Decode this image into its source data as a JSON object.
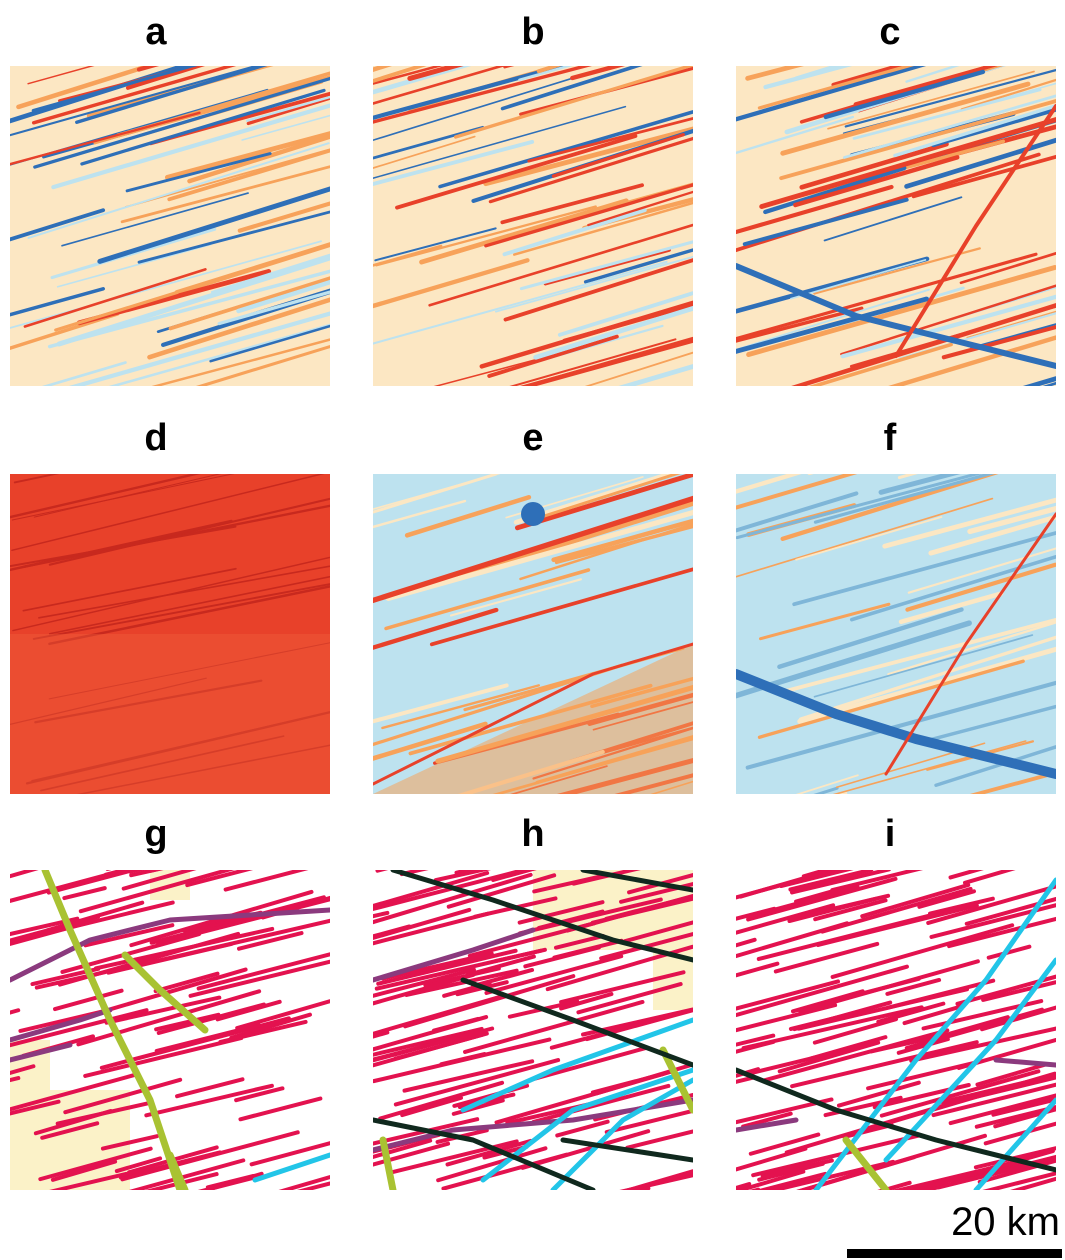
{
  "panels": [
    {
      "label": "a",
      "kind": "relief",
      "theme": "striped"
    },
    {
      "label": "b",
      "kind": "relief",
      "theme": "striped"
    },
    {
      "label": "c",
      "kind": "relief",
      "theme": "striped"
    },
    {
      "label": "d",
      "kind": "relief",
      "theme": "red"
    },
    {
      "label": "e",
      "kind": "relief",
      "theme": "mixed"
    },
    {
      "label": "f",
      "kind": "relief",
      "theme": "blue"
    },
    {
      "label": "g",
      "kind": "map"
    },
    {
      "label": "h",
      "kind": "map"
    },
    {
      "label": "i",
      "kind": "map"
    }
  ],
  "colors": {
    "red_line": "#e3124f",
    "purple_line": "#8b3a7e",
    "green_line": "#a9c232",
    "cyan_line": "#22c5e8",
    "dark_line": "#10291e",
    "cream_fill": "#fbf2c8",
    "relief_red": "#e8412a",
    "relief_orange": "#f7a25a",
    "relief_cream": "#fce7c3",
    "relief_lightblue": "#bde2ef",
    "relief_blue": "#2e6fb8"
  },
  "scale_bar": {
    "text": "20 km"
  }
}
